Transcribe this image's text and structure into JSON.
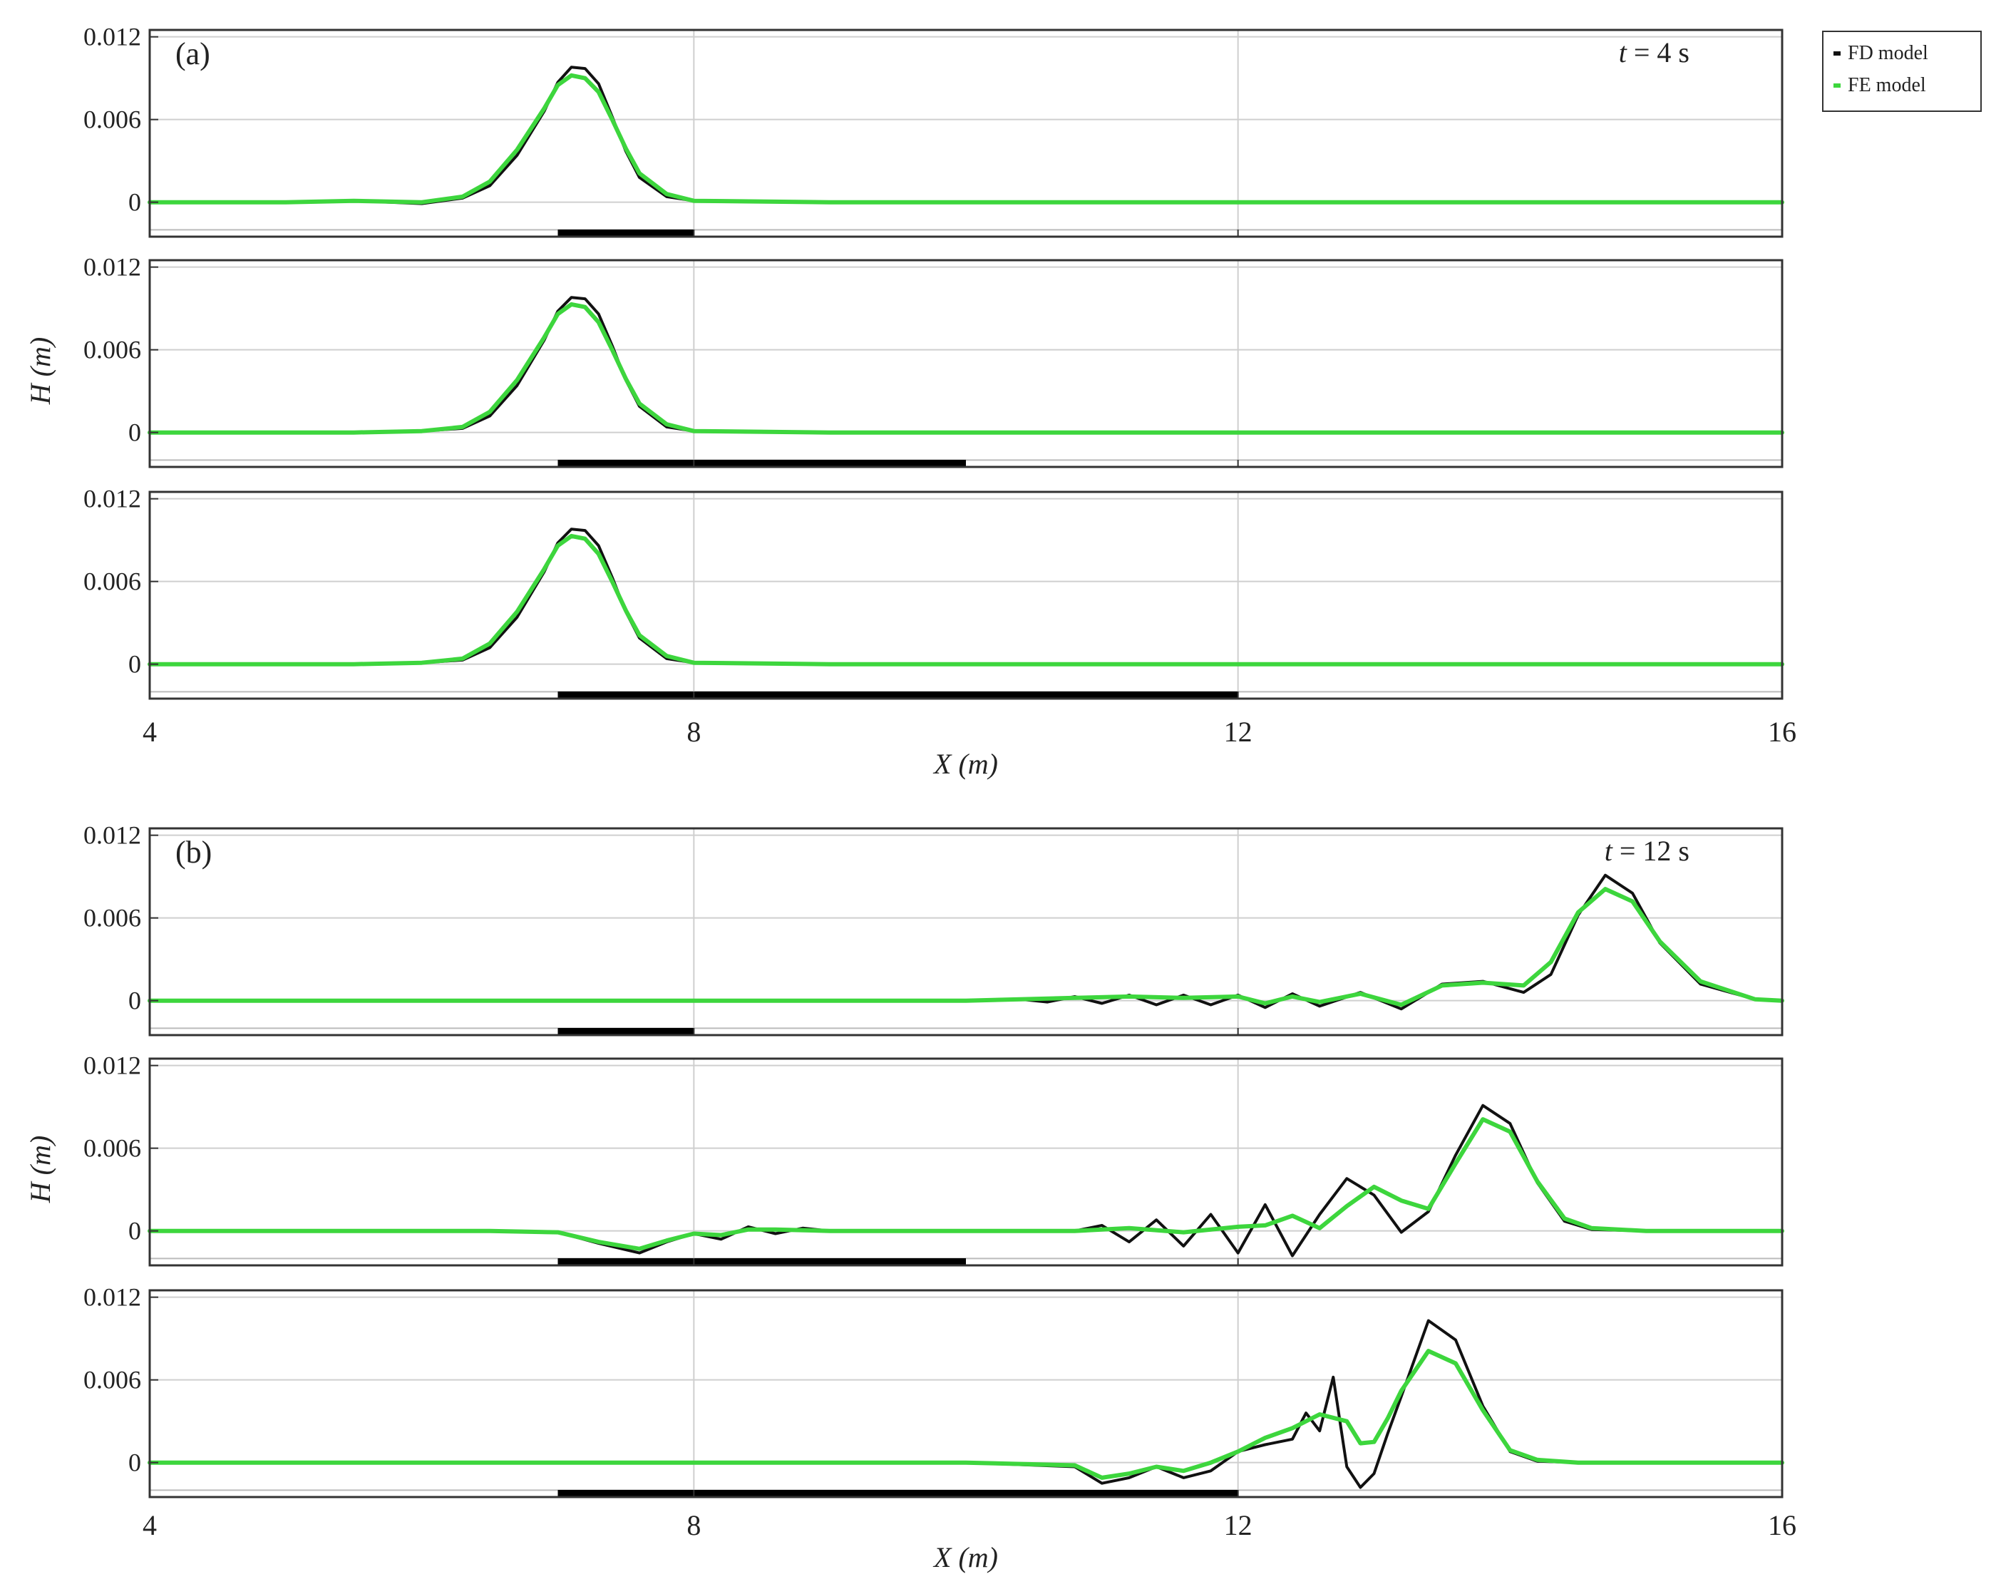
{
  "legend": {
    "fd_label": "FD model",
    "fe_label": "FE model"
  },
  "colors": {
    "fd": "#111111",
    "fe": "#3dd63d",
    "grid": "#cfcfcf",
    "bar": "#000000"
  },
  "chart_data": [
    {
      "type": "line",
      "group": "a",
      "panel_label": "(a)",
      "time_label_italic": "t",
      "time_label_rest": " = 4 s",
      "ylabel": "H (m)",
      "xlabel": "X (m)",
      "xlim": [
        4,
        16
      ],
      "xticks": [
        "4",
        "8",
        "12",
        "16"
      ],
      "ylim": [
        -0.0025,
        0.0125
      ],
      "yticks": [
        "0",
        "0.006",
        "0.012"
      ],
      "grid": true,
      "legend_position": "outside-top-right",
      "rows": [
        {
          "bar": [
            7,
            8
          ],
          "series": [
            {
              "name": "FD model",
              "x": [
                4.0,
                5.0,
                5.5,
                6.0,
                6.3,
                6.5,
                6.7,
                6.9,
                7.0,
                7.1,
                7.2,
                7.3,
                7.4,
                7.5,
                7.6,
                7.8,
                8.0,
                9.0,
                16.0
              ],
              "y": [
                0.0,
                0.0,
                0.0001,
                -0.0001,
                0.0003,
                0.0012,
                0.0034,
                0.0066,
                0.0087,
                0.0098,
                0.0097,
                0.0086,
                0.0062,
                0.0037,
                0.0018,
                0.0004,
                0.0001,
                0.0,
                0.0
              ]
            },
            {
              "name": "FE model",
              "x": [
                4.0,
                5.0,
                5.5,
                6.0,
                6.3,
                6.5,
                6.7,
                6.9,
                7.0,
                7.1,
                7.2,
                7.3,
                7.4,
                7.5,
                7.6,
                7.8,
                8.0,
                9.0,
                16.0
              ],
              "y": [
                0.0,
                0.0,
                0.0001,
                0.0,
                0.0004,
                0.0015,
                0.0038,
                0.0068,
                0.0085,
                0.0092,
                0.009,
                0.008,
                0.006,
                0.0039,
                0.0021,
                0.0006,
                0.0001,
                0.0,
                0.0
              ]
            }
          ]
        },
        {
          "bar": [
            7,
            10
          ],
          "series": [
            {
              "name": "FD model",
              "x": [
                4.0,
                5.5,
                6.0,
                6.3,
                6.5,
                6.7,
                6.9,
                7.0,
                7.1,
                7.2,
                7.3,
                7.4,
                7.5,
                7.6,
                7.8,
                8.0,
                9.0,
                16.0
              ],
              "y": [
                0.0,
                0.0,
                0.0001,
                0.0003,
                0.0012,
                0.0034,
                0.0067,
                0.0088,
                0.0098,
                0.0097,
                0.0086,
                0.0063,
                0.0038,
                0.0019,
                0.0004,
                0.0001,
                0.0,
                0.0
              ]
            },
            {
              "name": "FE model",
              "x": [
                4.0,
                5.5,
                6.0,
                6.3,
                6.5,
                6.7,
                6.9,
                7.0,
                7.1,
                7.2,
                7.3,
                7.4,
                7.5,
                7.6,
                7.8,
                8.0,
                9.0,
                16.0
              ],
              "y": [
                0.0,
                0.0,
                0.0001,
                0.0004,
                0.0015,
                0.0038,
                0.0069,
                0.0086,
                0.0093,
                0.0091,
                0.008,
                0.006,
                0.0039,
                0.0021,
                0.0006,
                0.0001,
                0.0,
                0.0
              ]
            }
          ]
        },
        {
          "bar": [
            7,
            12
          ],
          "series": [
            {
              "name": "FD model",
              "x": [
                4.0,
                5.5,
                6.0,
                6.3,
                6.5,
                6.7,
                6.9,
                7.0,
                7.1,
                7.2,
                7.3,
                7.4,
                7.5,
                7.6,
                7.8,
                8.0,
                9.0,
                16.0
              ],
              "y": [
                0.0,
                0.0,
                0.0001,
                0.0003,
                0.0012,
                0.0034,
                0.0067,
                0.0088,
                0.0098,
                0.0097,
                0.0086,
                0.0063,
                0.0038,
                0.0019,
                0.0004,
                0.0001,
                0.0,
                0.0
              ]
            },
            {
              "name": "FE model",
              "x": [
                4.0,
                5.5,
                6.0,
                6.3,
                6.5,
                6.7,
                6.9,
                7.0,
                7.1,
                7.2,
                7.3,
                7.4,
                7.5,
                7.6,
                7.8,
                8.0,
                9.0,
                16.0
              ],
              "y": [
                0.0,
                0.0,
                0.0001,
                0.0004,
                0.0015,
                0.0038,
                0.0069,
                0.0086,
                0.0093,
                0.0091,
                0.008,
                0.006,
                0.0039,
                0.0021,
                0.0006,
                0.0001,
                0.0,
                0.0
              ]
            }
          ]
        }
      ]
    },
    {
      "type": "line",
      "group": "b",
      "panel_label": "(b)",
      "time_label_italic": "t",
      "time_label_rest": " = 12 s",
      "ylabel": "H (m)",
      "xlabel": "X (m)",
      "xlim": [
        4,
        16
      ],
      "xticks": [
        "4",
        "8",
        "12",
        "16"
      ],
      "ylim": [
        -0.0025,
        0.0125
      ],
      "yticks": [
        "0",
        "0.006",
        "0.012"
      ],
      "grid": true,
      "legend_position": "outside-top-right",
      "rows": [
        {
          "bar": [
            7,
            8
          ],
          "series": [
            {
              "name": "FD model",
              "x": [
                4.0,
                10.0,
                10.4,
                10.6,
                10.8,
                11.0,
                11.2,
                11.4,
                11.6,
                11.8,
                12.0,
                12.2,
                12.4,
                12.6,
                12.9,
                13.2,
                13.5,
                13.8,
                14.1,
                14.3,
                14.5,
                14.7,
                14.9,
                15.1,
                15.4,
                15.8,
                16.0
              ],
              "y": [
                0.0,
                0.0,
                0.0001,
                -0.0001,
                0.0003,
                -0.0002,
                0.0004,
                -0.0003,
                0.0004,
                -0.0003,
                0.0004,
                -0.0005,
                0.0005,
                -0.0004,
                0.0006,
                -0.0006,
                0.0012,
                0.0014,
                0.0006,
                0.0019,
                0.0062,
                0.0091,
                0.0078,
                0.0042,
                0.0012,
                0.0001,
                0.0
              ]
            },
            {
              "name": "FE model",
              "x": [
                4.0,
                10.0,
                10.4,
                10.8,
                11.2,
                11.6,
                12.0,
                12.2,
                12.4,
                12.6,
                12.9,
                13.2,
                13.5,
                13.8,
                14.1,
                14.3,
                14.5,
                14.7,
                14.9,
                15.1,
                15.4,
                15.8,
                16.0
              ],
              "y": [
                0.0,
                0.0,
                0.0001,
                0.0002,
                0.0003,
                0.0002,
                0.0003,
                -0.0002,
                0.0003,
                -0.0001,
                0.0005,
                -0.0003,
                0.0011,
                0.0013,
                0.0011,
                0.0028,
                0.0064,
                0.0081,
                0.0072,
                0.0043,
                0.0014,
                0.0001,
                0.0
              ]
            }
          ]
        },
        {
          "bar": [
            7,
            10
          ],
          "series": [
            {
              "name": "FD model",
              "x": [
                4.0,
                6.5,
                7.0,
                7.3,
                7.6,
                7.8,
                8.0,
                8.2,
                8.4,
                8.6,
                8.8,
                9.0,
                10.0,
                10.8,
                11.0,
                11.2,
                11.4,
                11.6,
                11.8,
                12.0,
                12.2,
                12.4,
                12.6,
                12.8,
                13.0,
                13.2,
                13.4,
                13.6,
                13.8,
                14.0,
                14.2,
                14.4,
                14.6,
                15.0,
                16.0
              ],
              "y": [
                0.0,
                0.0,
                -0.0001,
                -0.0009,
                -0.0016,
                -0.0008,
                -0.0002,
                -0.0006,
                0.0003,
                -0.0002,
                0.0002,
                0.0,
                0.0,
                0.0,
                0.0004,
                -0.0008,
                0.0008,
                -0.0011,
                0.0012,
                -0.0016,
                0.0019,
                -0.0018,
                0.0012,
                0.0038,
                0.0026,
                -0.0001,
                0.0014,
                0.0055,
                0.0091,
                0.0078,
                0.0035,
                0.0007,
                0.0001,
                0.0,
                0.0
              ]
            },
            {
              "name": "FE model",
              "x": [
                4.0,
                6.5,
                7.0,
                7.3,
                7.6,
                7.8,
                8.0,
                8.2,
                8.4,
                8.6,
                9.0,
                10.0,
                10.8,
                11.2,
                11.6,
                12.0,
                12.2,
                12.4,
                12.6,
                12.8,
                13.0,
                13.2,
                13.4,
                13.6,
                13.8,
                14.0,
                14.2,
                14.4,
                14.6,
                15.0,
                16.0
              ],
              "y": [
                0.0,
                0.0,
                -0.0001,
                -0.0008,
                -0.0013,
                -0.0007,
                -0.0002,
                -0.0003,
                0.0001,
                0.0001,
                0.0,
                0.0,
                0.0,
                0.0002,
                -0.0001,
                0.0003,
                0.0004,
                0.0011,
                0.0002,
                0.0018,
                0.0032,
                0.0022,
                0.0016,
                0.0049,
                0.0081,
                0.0072,
                0.0036,
                0.0009,
                0.0002,
                0.0,
                0.0
              ]
            }
          ]
        },
        {
          "bar": [
            7,
            12
          ],
          "series": [
            {
              "name": "FD model",
              "x": [
                4.0,
                10.0,
                10.8,
                11.0,
                11.2,
                11.4,
                11.6,
                11.8,
                12.0,
                12.2,
                12.4,
                12.5,
                12.6,
                12.7,
                12.8,
                12.9,
                13.0,
                13.1,
                13.2,
                13.4,
                13.6,
                13.8,
                14.0,
                14.2,
                14.5,
                16.0
              ],
              "y": [
                0.0,
                0.0,
                -0.0003,
                -0.0015,
                -0.0011,
                -0.0003,
                -0.0011,
                -0.0006,
                0.0008,
                0.0013,
                0.0017,
                0.0036,
                0.0023,
                0.0062,
                -0.0003,
                -0.0018,
                -0.0008,
                0.0021,
                0.0048,
                0.0103,
                0.0089,
                0.0041,
                0.0008,
                0.0001,
                0.0,
                0.0
              ]
            },
            {
              "name": "FE model",
              "x": [
                4.0,
                10.0,
                10.8,
                11.0,
                11.2,
                11.4,
                11.6,
                11.8,
                12.0,
                12.2,
                12.4,
                12.6,
                12.8,
                12.9,
                13.0,
                13.1,
                13.2,
                13.4,
                13.6,
                13.8,
                14.0,
                14.2,
                14.5,
                16.0
              ],
              "y": [
                0.0,
                0.0,
                -0.0002,
                -0.0011,
                -0.0008,
                -0.0003,
                -0.0006,
                0.0,
                0.0008,
                0.0018,
                0.0025,
                0.0035,
                0.003,
                0.0014,
                0.0015,
                0.0032,
                0.0052,
                0.0081,
                0.0072,
                0.0038,
                0.0009,
                0.0002,
                0.0,
                0.0
              ]
            }
          ]
        }
      ]
    }
  ]
}
